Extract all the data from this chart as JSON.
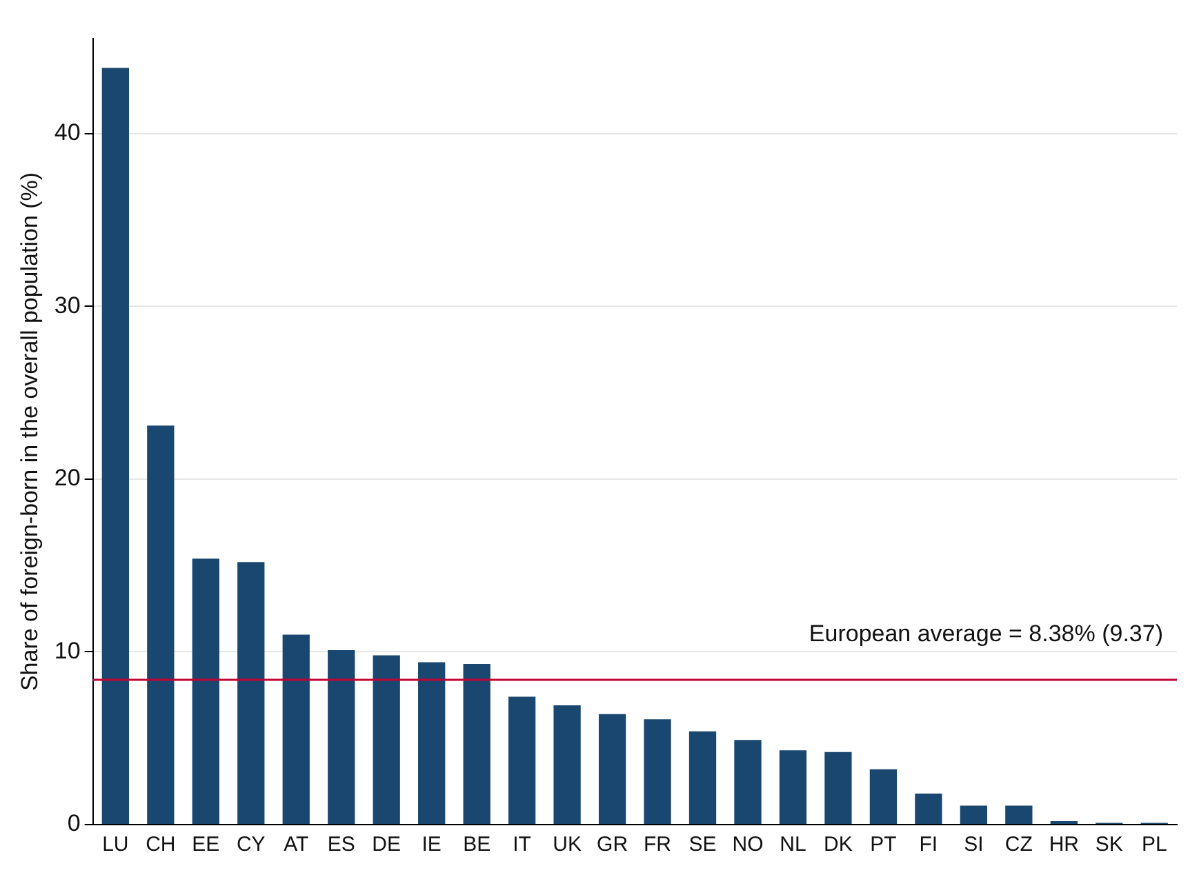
{
  "chart_data": {
    "type": "bar",
    "ylabel": "Share of foreign-born in the overall population (%)",
    "categories": [
      "LU",
      "CH",
      "EE",
      "CY",
      "AT",
      "ES",
      "DE",
      "IE",
      "BE",
      "IT",
      "UK",
      "GR",
      "FR",
      "SE",
      "NO",
      "NL",
      "DK",
      "PT",
      "FI",
      "SI",
      "CZ",
      "HR",
      "SK",
      "PL"
    ],
    "values": [
      43.8,
      23.1,
      15.4,
      15.2,
      11.0,
      10.1,
      9.8,
      9.4,
      9.3,
      7.4,
      6.9,
      6.4,
      6.1,
      5.4,
      4.9,
      4.3,
      4.2,
      3.2,
      1.8,
      1.1,
      1.1,
      0.2,
      0.1,
      0.1
    ],
    "color": "#1a476f",
    "ylim": [
      0,
      45.5
    ],
    "yticks": [
      0,
      10,
      20,
      30,
      40
    ],
    "grid": "y",
    "legend": false,
    "ref_lines": [
      {
        "axis": "y",
        "value": 8.38,
        "label": "European average = 8.38% (9.37)",
        "color": "#c10534"
      }
    ]
  }
}
